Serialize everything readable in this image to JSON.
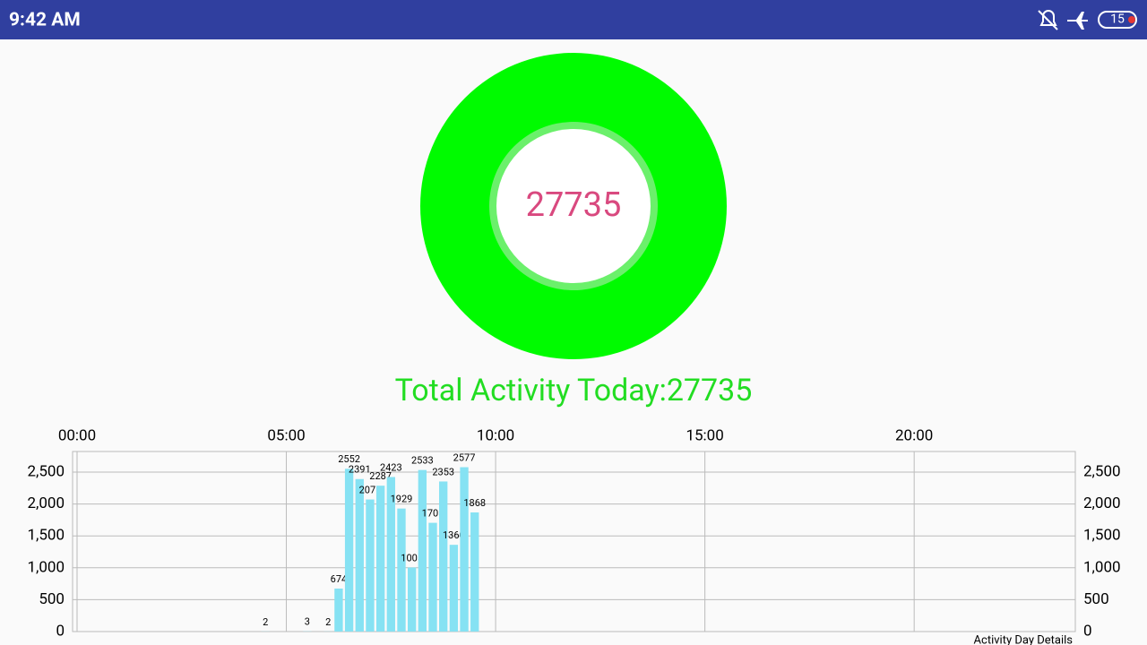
{
  "status_bar": {
    "time": "9:42 AM",
    "battery": "15"
  },
  "ring": {
    "center_text": "27735"
  },
  "total_label": "Total Activity Today:27735",
  "chart_data": {
    "type": "bar",
    "x": [
      4.5,
      5.5,
      6.0,
      6.25,
      6.5,
      6.75,
      7.0,
      7.25,
      7.5,
      7.75,
      8.0,
      8.25,
      8.5,
      8.75,
      9.0,
      9.25,
      9.5
    ],
    "values": [
      2,
      3,
      2,
      674,
      2552,
      2391,
      2071,
      2287,
      2423,
      1929,
      1005,
      2533,
      1705,
      2353,
      1360,
      2577,
      1868
    ],
    "color": "#86e2f3",
    "xlim": [
      -0.107,
      23.85
    ],
    "xticks": [
      {
        "value": 0,
        "label": "00:00"
      },
      {
        "value": 5,
        "label": "05:00"
      },
      {
        "value": 10,
        "label": "10:00"
      },
      {
        "value": 15,
        "label": "15:00"
      },
      {
        "value": 20,
        "label": "20:00"
      }
    ],
    "ylim": [
      0,
      2823
    ],
    "yticks": [
      0,
      500,
      {
        "value": 1000,
        "label": "1,000"
      },
      {
        "value": 1500,
        "label": "1,500"
      },
      {
        "value": 2000,
        "label": "2,000"
      },
      {
        "value": 2500,
        "label": "2,500"
      }
    ],
    "y2lim": [
      0,
      2823
    ],
    "y2ticks": [
      0,
      500,
      {
        "value": 1000,
        "label": "1,000"
      },
      {
        "value": 1500,
        "label": "1,500"
      },
      {
        "value": 2000,
        "label": "2,000"
      },
      {
        "value": 2500,
        "label": "2,500"
      }
    ],
    "grid": true,
    "description": "Activity Day Details"
  }
}
